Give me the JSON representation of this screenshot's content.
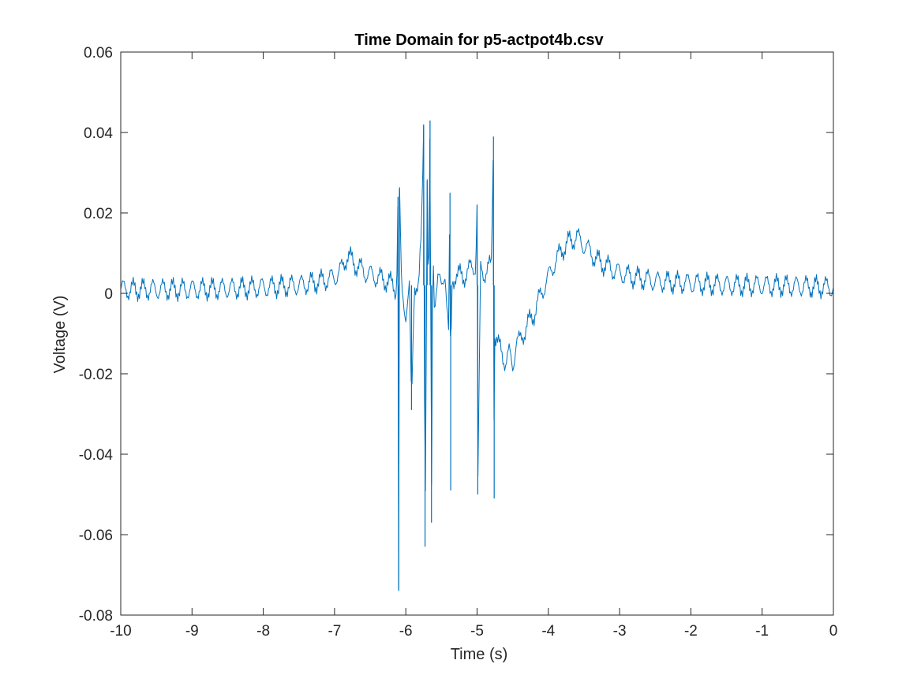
{
  "chart_data": {
    "type": "line",
    "title": "Time Domain for p5-actpot4b.csv",
    "xlabel": "Time (s)",
    "ylabel": "Voltage (V)",
    "xlim": [
      -10,
      0
    ],
    "ylim": [
      -0.08,
      0.06
    ],
    "xticks": [
      -10,
      -9,
      -8,
      -7,
      -6,
      -5,
      -4,
      -3,
      -2,
      -1,
      0
    ],
    "xtick_labels": [
      "-10",
      "-9",
      "-8",
      "-7",
      "-6",
      "-5",
      "-4",
      "-3",
      "-2",
      "-1",
      "0"
    ],
    "yticks": [
      -0.08,
      -0.06,
      -0.04,
      -0.02,
      0,
      0.02,
      0.04,
      0.06
    ],
    "ytick_labels": [
      "-0.08",
      "-0.06",
      "-0.04",
      "-0.02",
      "0",
      "0.02",
      "0.04",
      "0.06"
    ],
    "grid": false,
    "box": true,
    "series": [
      {
        "color": "#0072BD",
        "x": [
          -10,
          -9.5,
          -9,
          -8.5,
          -8,
          -7.5,
          -7.2,
          -7.0,
          -6.9,
          -6.82,
          -6.7,
          -6.55,
          -6.4,
          -6.25,
          -6.18,
          -6.13,
          -6.11,
          -6.1,
          -6.09,
          -6.06,
          -6.0,
          -5.95,
          -5.92,
          -5.88,
          -5.82,
          -5.78,
          -5.75,
          -5.73,
          -5.7,
          -5.68,
          -5.66,
          -5.64,
          -5.62,
          -5.6,
          -5.55,
          -5.5,
          -5.45,
          -5.4,
          -5.38,
          -5.37,
          -5.36,
          -5.3,
          -5.2,
          -5.1,
          -5.02,
          -5.0,
          -4.99,
          -4.95,
          -4.9,
          -4.8,
          -4.77,
          -4.76,
          -4.75,
          -4.7,
          -4.6,
          -4.55,
          -4.5,
          -4.45,
          -4.4,
          -4.3,
          -4.2,
          -4.1,
          -4.0,
          -3.9,
          -3.8,
          -3.7,
          -3.6,
          -3.55,
          -3.5,
          -3.4,
          -3.3,
          -3.2,
          -3.0,
          -2.8,
          -2.5,
          -2.0,
          -1.5,
          -1.0,
          -0.5,
          0
        ],
        "y": [
          0.001,
          0.001,
          0.001,
          0.0012,
          0.0015,
          0.002,
          0.003,
          0.004,
          0.006,
          0.0095,
          0.007,
          0.005,
          0.004,
          0.003,
          0.002,
          0.001,
          0.024,
          -0.074,
          0.026,
          0.001,
          -0.005,
          0.001,
          -0.029,
          0.003,
          0.001,
          0.015,
          0.042,
          -0.063,
          0.028,
          -0.005,
          0.043,
          -0.057,
          0.015,
          -0.002,
          0.004,
          0.001,
          0.006,
          -0.01,
          0.025,
          -0.049,
          0.002,
          0.005,
          0.004,
          0.006,
          0.007,
          0.022,
          -0.05,
          0.006,
          0.005,
          0.007,
          0.039,
          -0.051,
          -0.01,
          -0.013,
          -0.017,
          -0.015,
          -0.018,
          -0.012,
          -0.012,
          -0.008,
          -0.005,
          0.0,
          0.004,
          0.008,
          0.011,
          0.013,
          0.014,
          0.013,
          0.012,
          0.01,
          0.008,
          0.007,
          0.005,
          0.004,
          0.003,
          0.0025,
          0.002,
          0.002,
          0.0018,
          0.0015
        ]
      }
    ]
  }
}
